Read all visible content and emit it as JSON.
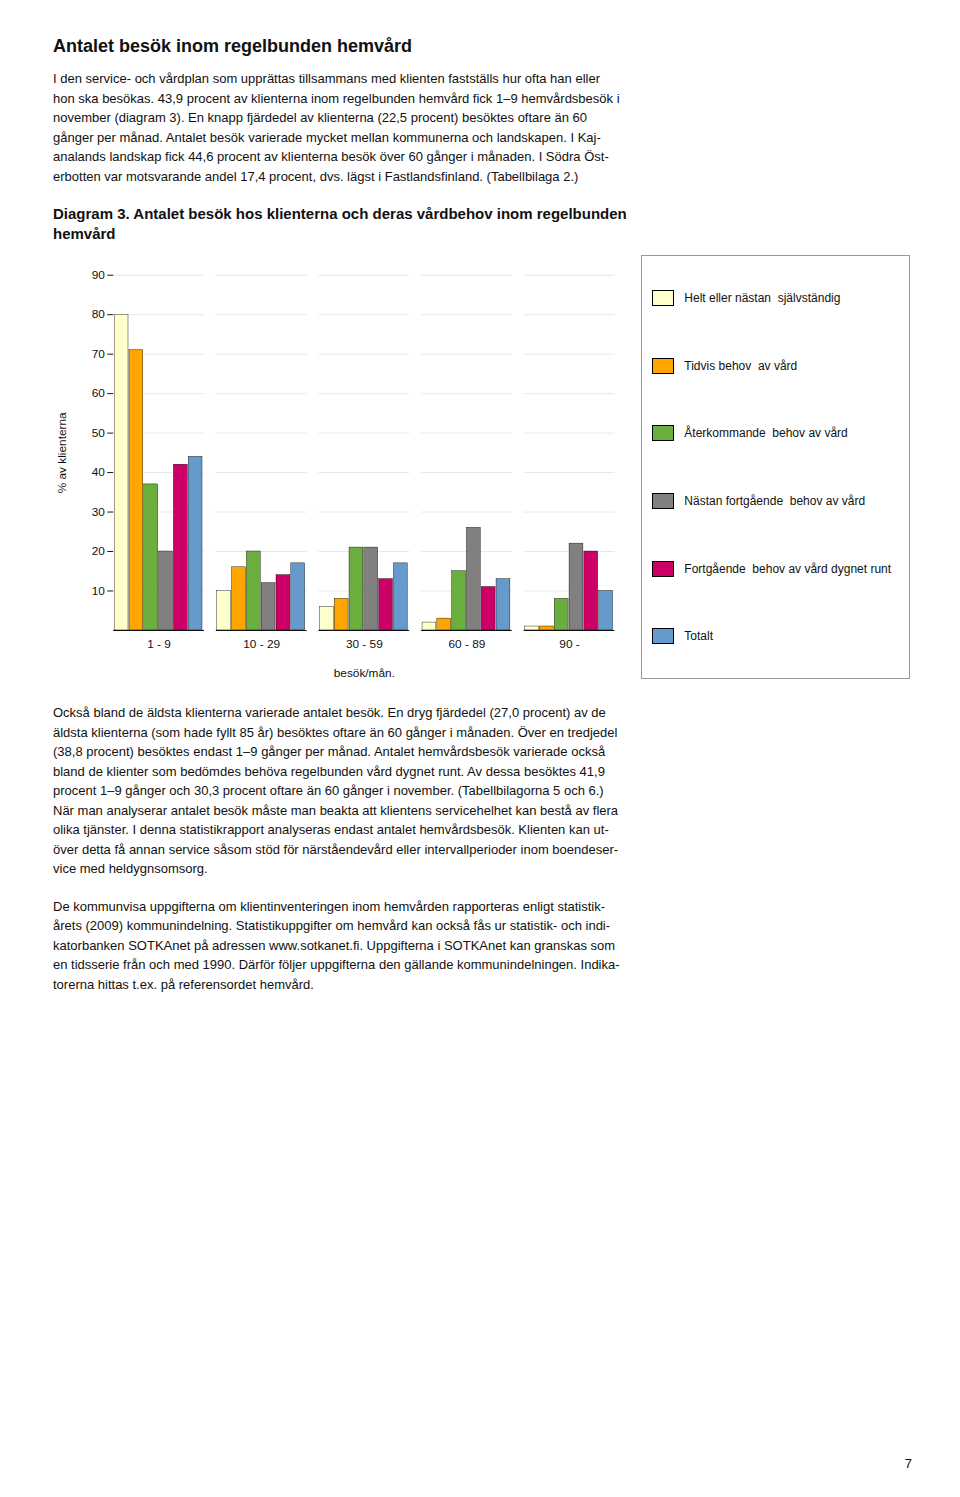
{
  "page": {
    "title": "Antalet besök inom regelbunden hemvård",
    "text_before": [
      "I den service- och vårdplan som upprättas tillsammans med klienten fastställs hur ofta han eller\nhon ska besökas. 43,9 procent av klienterna inom regelbunden hemvård fick 1–9 hemvårdsbesök i\nnovember (diagram 3). En knapp fjärdedel av klienterna (22,5 procent) besöktes oftare än 60\ngånger per månad. Antalet besök varierade mycket mellan kommunerna och landskapen. I Kaj-\nanalands landskap fick 44,6 procent av klienterna besök över 60 gånger i månaden. I Södra Öst-\nerbotten var motsvarande andel 17,4 procent, dvs. lägst i Fastlandsfinland. (Tabellbilaga 2.)"
    ],
    "text_after": [
      "Också bland de äldsta klienterna varierade antalet besök. En dryg fjärdedel (27,0 procent) av de\näldsta klienterna (som hade fyllt 85 år) besöktes oftare än 60 gånger i månaden. Över en tredjedel\n(38,8 procent) besöktes endast 1–9 gånger per månad. Antalet hemvårdsbesök varierade också\nbland de klienter som bedömdes behöva regelbunden vård dygnet runt. Av dessa besöktes 41,9\nprocent 1–9 gånger och 30,3 procent oftare än 60 gånger i november. (Tabellbilagorna 5 och 6.)\nNär man analyserar antalet besök måste man beakta att klientens servicehelhet kan bestå av flera\nolika tjänster. I denna statistikrapport analyseras endast antalet hemvårdsbesök. Klienten kan ut-\növer detta få annan service såsom stöd för närståendevård eller intervallperioder inom boendeser-\nvice med heldygnsomsorg.",
      "De kommunvisa uppgifterna om klientinventeringen inom hemvården rapporteras enligt statistik-\nårets (2009) kommunindelning. Statistikuppgifter om hemvård kan också fås ur statistik- och indi-\nkatorbanken SOTKAnet på adressen www.sotkanet.fi. Uppgifterna i SOTKAnet kan granskas som\nen tidsserie från och med 1990. Därför följer uppgifterna den gällande kommunindelningen. Indika-\ntorerna hittas t.ex. på referensordet hemvård."
    ],
    "page_number": "7"
  },
  "chart_data": {
    "type": "bar",
    "title": "Diagram 3. Antalet besök hos klienterna och deras vårdbehov inom regelbunden\nhemvård",
    "xlabel": "besök/mån.",
    "ylabel": "% av klienterna",
    "categories": [
      "1 - 9",
      "10 - 29",
      "30 - 59",
      "60 - 89",
      "90 -"
    ],
    "series": [
      {
        "name": "Helt eller nästan  självständig",
        "color": "#FFFFCC",
        "values": [
          80,
          10,
          6,
          2,
          1
        ]
      },
      {
        "name": "Tidvis behov  av vård",
        "color": "#FFA500",
        "values": [
          71,
          16,
          8,
          3,
          1
        ]
      },
      {
        "name": "Återkommande  behov av vård",
        "color": "#6AAF3D",
        "values": [
          37,
          20,
          21,
          15,
          8
        ]
      },
      {
        "name": "Nästan fortgående  behov av vård",
        "color": "#808080",
        "values": [
          20,
          12,
          21,
          26,
          22
        ]
      },
      {
        "name": "Fortgående  behov av vård dygnet runt",
        "color": "#CC0066",
        "values": [
          42,
          14,
          13,
          11,
          20
        ]
      },
      {
        "name": "Totalt",
        "color": "#6699CC",
        "values": [
          44,
          17,
          17,
          13,
          10
        ]
      }
    ],
    "ylim": [
      0,
      90
    ],
    "yticks": [
      10,
      20,
      30,
      40,
      50,
      60,
      70,
      80,
      90
    ],
    "grid": true,
    "legend": "right"
  }
}
